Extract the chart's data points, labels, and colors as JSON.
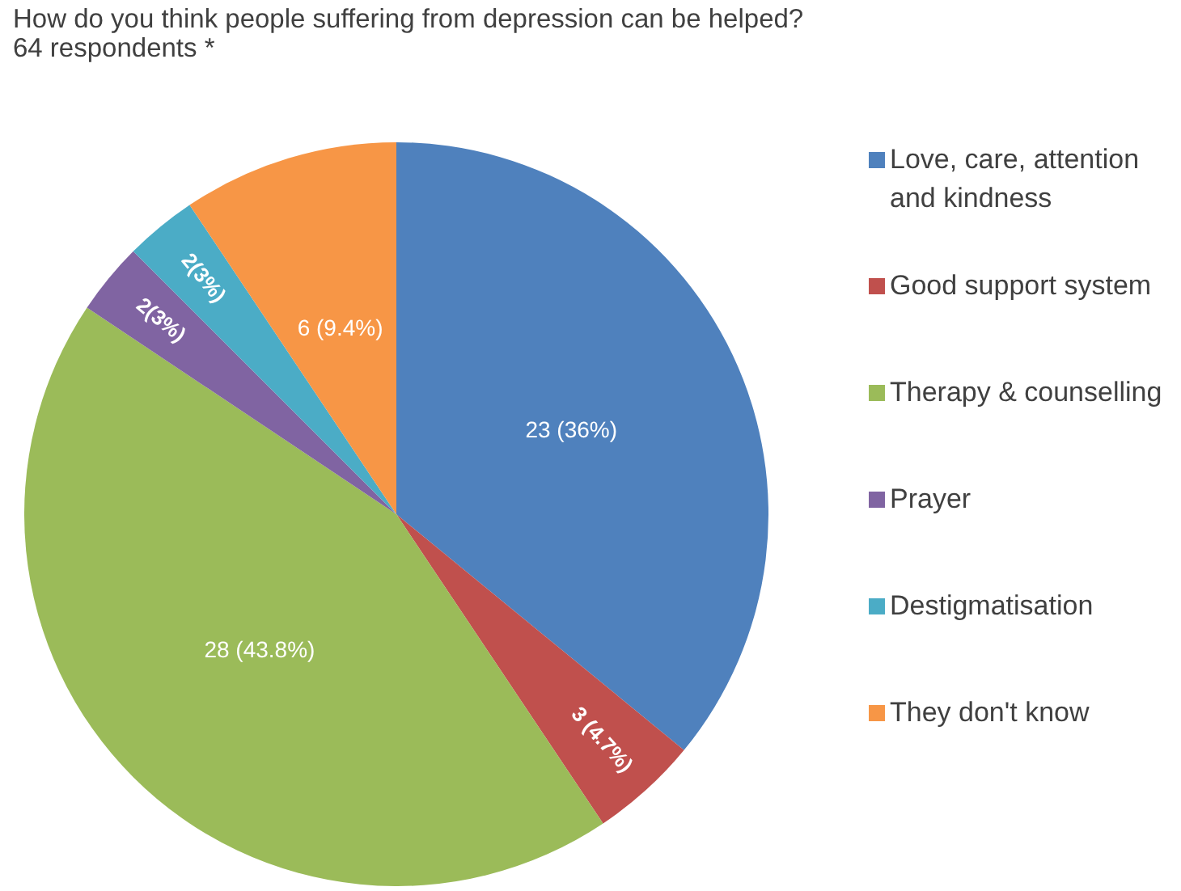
{
  "chart_data": {
    "type": "pie",
    "title": "How do you think people suffering from depression can be helped?",
    "subtitle": "64 respondents *",
    "categories": [
      "Love, care, attention and kindness",
      "Good support system",
      "Therapy & counselling",
      "Prayer",
      "Destigmatisation",
      "They don't know"
    ],
    "values": [
      23,
      3,
      28,
      2,
      2,
      6
    ],
    "colors": [
      "#4f81bd",
      "#c0504d",
      "#9bbb59",
      "#8064a2",
      "#4bacc6",
      "#f79646"
    ],
    "value_labels": [
      "23 (36%)",
      "3 (4.7%)",
      "28 (43.8%)",
      "2(3%)",
      "2(3%)",
      "6 (9.4%)"
    ],
    "legend": "right"
  }
}
